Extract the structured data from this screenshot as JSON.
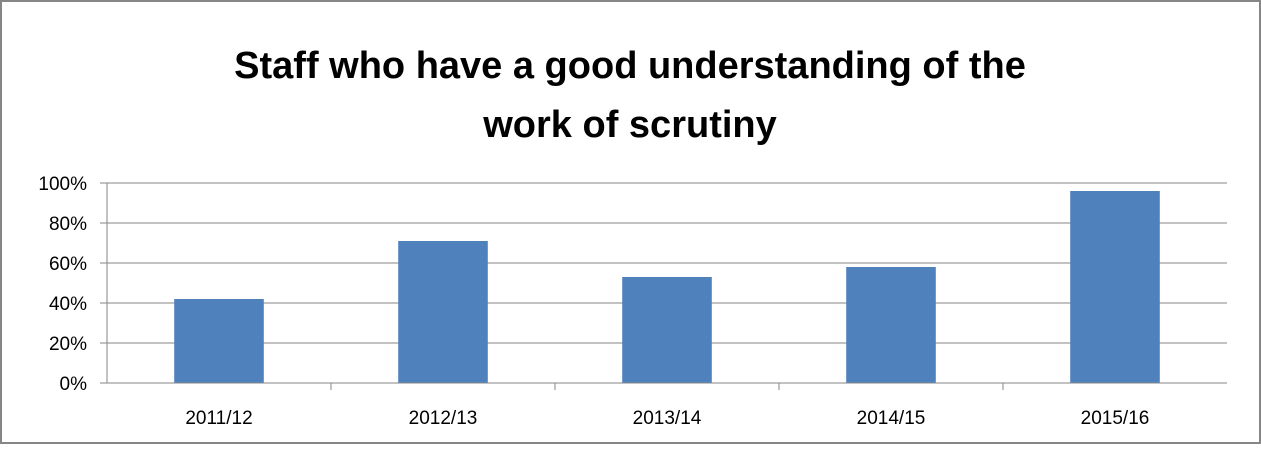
{
  "chart_data": {
    "type": "bar",
    "title_lines": [
      "Staff who have a good understanding of the",
      "work of scrutiny"
    ],
    "categories": [
      "2011/12",
      "2012/13",
      "2013/14",
      "2014/15",
      "2015/16"
    ],
    "values": [
      42,
      71,
      53,
      58,
      96
    ],
    "y_tick_labels": [
      "0%",
      "20%",
      "40%",
      "60%",
      "80%",
      "100%"
    ],
    "ylim": [
      0,
      100
    ],
    "grid": true,
    "legend": "none",
    "bar_color": "#4F81BD",
    "gridline_color": "#868686",
    "frame_color": "#868686"
  }
}
